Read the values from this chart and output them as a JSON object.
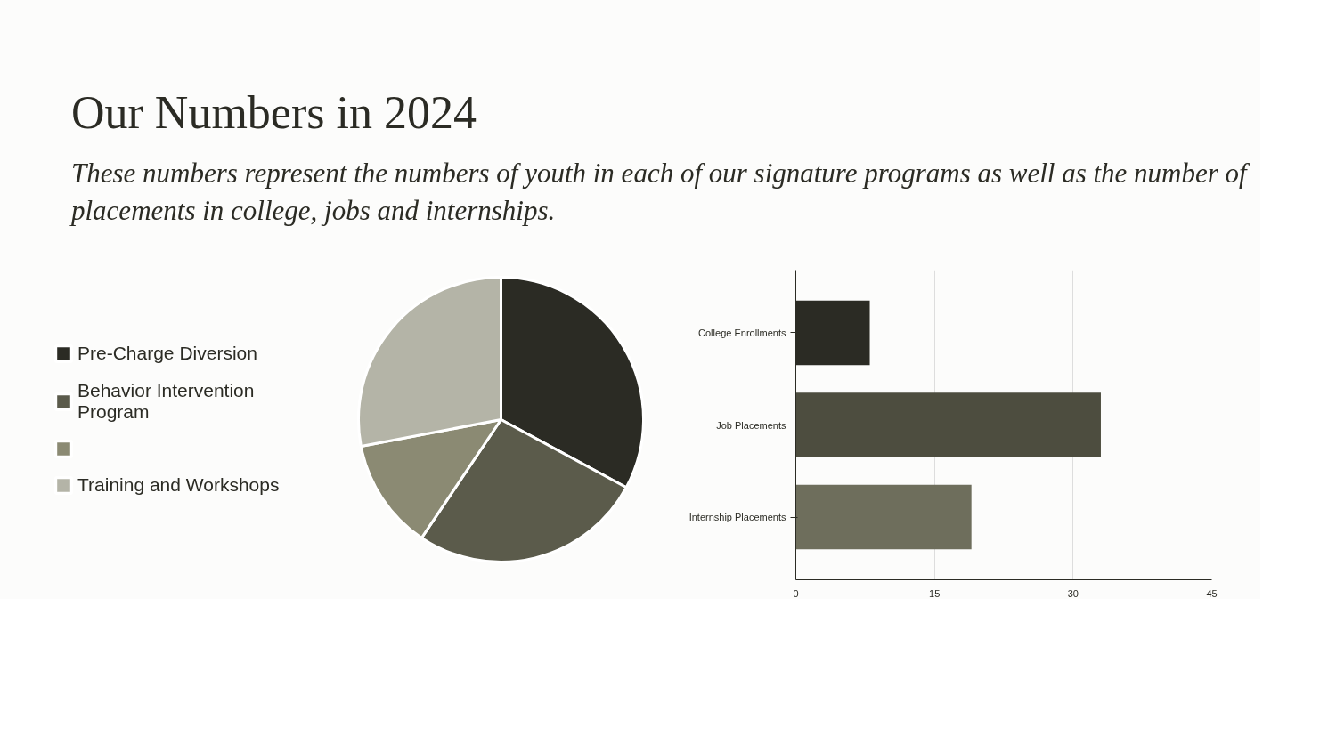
{
  "chart_data": [
    {
      "type": "pie",
      "title": "Our Numbers in 2024",
      "subtitle": "These numbers represent the numbers of youth in each of our signature programs as well as the number of placements in college, jobs and internships.",
      "categories": [
        "Pre-Charge Diversion",
        "Behavior Intervention Program",
        null,
        "Training and Workshops"
      ],
      "values": [
        32.9,
        26.5,
        12.6,
        28.0
      ],
      "colors": [
        "#2b2b24",
        "#5b5b4b",
        "#8b8a73",
        "#b4b4a7"
      ],
      "legend": "left"
    },
    {
      "type": "bar",
      "orientation": "horizontal",
      "categories": [
        "College Enrollments",
        "Job Placements",
        "Internship Placements"
      ],
      "values": [
        8,
        33,
        19
      ],
      "colors": [
        "#2b2b24",
        "#4d4d3f",
        "#6e6e5c"
      ],
      "xlim": [
        0,
        45
      ],
      "xticks": [
        0,
        15,
        30,
        45
      ],
      "grid": "x"
    }
  ]
}
